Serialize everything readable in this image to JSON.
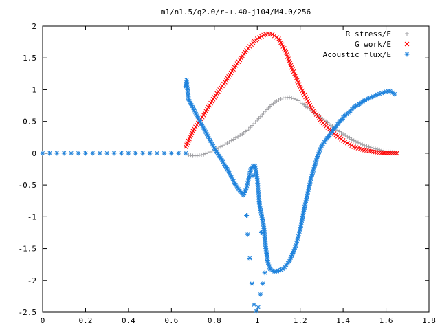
{
  "chart_data": {
    "type": "scatter",
    "title": "m1/n1.5/q2.0/r-+.40-j104/M4.0/256",
    "xlabel": "",
    "ylabel": "",
    "xlim": [
      0,
      1.8
    ],
    "ylim": [
      -2.5,
      2
    ],
    "xticks": [
      0,
      0.2,
      0.4,
      0.6,
      0.8,
      1,
      1.2,
      1.4,
      1.6,
      1.8
    ],
    "xtick_labels": [
      "0",
      "0.2",
      "0.4",
      "0.6",
      "0.8",
      "1",
      "1.2",
      "1.4",
      "1.6",
      "1.8"
    ],
    "yticks": [
      -2.5,
      -2,
      -1.5,
      -1,
      -0.5,
      0,
      0.5,
      1,
      1.5,
      2
    ],
    "ytick_labels": [
      "-2.5",
      "-2",
      "-1.5",
      "-1",
      "-0.5",
      "0",
      "0.5",
      "1",
      "1.5",
      "2"
    ],
    "grid": false,
    "legend": "top-right",
    "series": [
      {
        "name": "R stress/E",
        "marker": "plus",
        "color": "#a0a0a4",
        "points": [
          [
            0,
            0
          ],
          [
            0.1,
            0
          ],
          [
            0.2,
            0
          ],
          [
            0.3,
            0
          ],
          [
            0.4,
            0
          ],
          [
            0.5,
            0
          ],
          [
            0.6,
            0
          ],
          [
            0.667,
            0
          ],
          [
            0.68,
            -0.03
          ],
          [
            0.7,
            -0.04
          ],
          [
            0.72,
            -0.04
          ],
          [
            0.75,
            -0.02
          ],
          [
            0.78,
            0.02
          ],
          [
            0.8,
            0.05
          ],
          [
            0.83,
            0.1
          ],
          [
            0.86,
            0.16
          ],
          [
            0.9,
            0.24
          ],
          [
            0.93,
            0.3
          ],
          [
            0.96,
            0.38
          ],
          [
            1.0,
            0.52
          ],
          [
            1.03,
            0.63
          ],
          [
            1.06,
            0.74
          ],
          [
            1.09,
            0.82
          ],
          [
            1.12,
            0.87
          ],
          [
            1.15,
            0.88
          ],
          [
            1.18,
            0.85
          ],
          [
            1.21,
            0.78
          ],
          [
            1.25,
            0.68
          ],
          [
            1.28,
            0.6
          ],
          [
            1.32,
            0.5
          ],
          [
            1.35,
            0.42
          ],
          [
            1.4,
            0.3
          ],
          [
            1.45,
            0.2
          ],
          [
            1.5,
            0.12
          ],
          [
            1.55,
            0.07
          ],
          [
            1.6,
            0.03
          ],
          [
            1.65,
            0.01
          ]
        ]
      },
      {
        "name": "G work/E",
        "marker": "cross",
        "color": "#ff0000",
        "points": [
          [
            0.667,
            0.1
          ],
          [
            0.7,
            0.35
          ],
          [
            0.75,
            0.6
          ],
          [
            0.8,
            0.88
          ],
          [
            0.85,
            1.12
          ],
          [
            0.9,
            1.38
          ],
          [
            0.95,
            1.62
          ],
          [
            0.98,
            1.74
          ],
          [
            1.0,
            1.8
          ],
          [
            1.03,
            1.86
          ],
          [
            1.05,
            1.88
          ],
          [
            1.07,
            1.87
          ],
          [
            1.1,
            1.8
          ],
          [
            1.13,
            1.62
          ],
          [
            1.16,
            1.35
          ],
          [
            1.2,
            1.05
          ],
          [
            1.25,
            0.72
          ],
          [
            1.3,
            0.5
          ],
          [
            1.35,
            0.33
          ],
          [
            1.4,
            0.2
          ],
          [
            1.45,
            0.1
          ],
          [
            1.5,
            0.05
          ],
          [
            1.55,
            0.02
          ],
          [
            1.6,
            0.0
          ],
          [
            1.65,
            0.0
          ]
        ]
      },
      {
        "name": "Acoustic flux/E",
        "marker": "star",
        "color": "#1e82dc",
        "points": [
          [
            0,
            0
          ],
          [
            0.1,
            0
          ],
          [
            0.2,
            0
          ],
          [
            0.3,
            0
          ],
          [
            0.4,
            0
          ],
          [
            0.5,
            0
          ],
          [
            0.6,
            0
          ],
          [
            0.667,
            0
          ],
          [
            0.667,
            1.05
          ],
          [
            0.671,
            1.15
          ],
          [
            0.68,
            0.85
          ],
          [
            0.7,
            0.72
          ],
          [
            0.72,
            0.58
          ],
          [
            0.75,
            0.4
          ],
          [
            0.78,
            0.2
          ],
          [
            0.8,
            0.08
          ],
          [
            0.83,
            -0.08
          ],
          [
            0.86,
            -0.25
          ],
          [
            0.88,
            -0.38
          ],
          [
            0.9,
            -0.5
          ],
          [
            0.92,
            -0.6
          ],
          [
            0.935,
            -0.66
          ],
          [
            0.95,
            -0.55
          ],
          [
            0.96,
            -0.4
          ],
          [
            0.97,
            -0.25
          ],
          [
            0.98,
            -0.2
          ],
          [
            0.99,
            -0.2
          ],
          [
            1.0,
            -0.4
          ],
          [
            1.01,
            -0.8
          ],
          [
            1.03,
            -1.15
          ],
          [
            1.04,
            -1.5
          ],
          [
            1.05,
            -1.72
          ],
          [
            1.06,
            -1.82
          ],
          [
            1.08,
            -1.86
          ],
          [
            1.1,
            -1.85
          ],
          [
            1.12,
            -1.82
          ],
          [
            1.15,
            -1.7
          ],
          [
            1.18,
            -1.45
          ],
          [
            1.2,
            -1.2
          ],
          [
            1.22,
            -0.85
          ],
          [
            1.25,
            -0.4
          ],
          [
            1.28,
            -0.05
          ],
          [
            1.3,
            0.12
          ],
          [
            1.35,
            0.35
          ],
          [
            1.4,
            0.56
          ],
          [
            1.45,
            0.72
          ],
          [
            1.5,
            0.83
          ],
          [
            1.55,
            0.91
          ],
          [
            1.6,
            0.97
          ],
          [
            1.62,
            0.98
          ],
          [
            1.64,
            0.93
          ],
          [
            0.95,
            -0.98
          ],
          [
            0.955,
            -1.28
          ],
          [
            0.965,
            -1.65
          ],
          [
            0.975,
            -2.05
          ],
          [
            0.985,
            -2.38
          ],
          [
            0.995,
            -2.48
          ],
          [
            1.005,
            -2.42
          ],
          [
            1.015,
            -2.22
          ],
          [
            1.025,
            -2.05
          ],
          [
            1.035,
            -1.88
          ],
          [
            1.045,
            -1.58
          ],
          [
            1.02,
            -1.25
          ],
          [
            1.01,
            -0.78
          ],
          [
            0.98,
            -0.35
          ]
        ]
      }
    ]
  }
}
